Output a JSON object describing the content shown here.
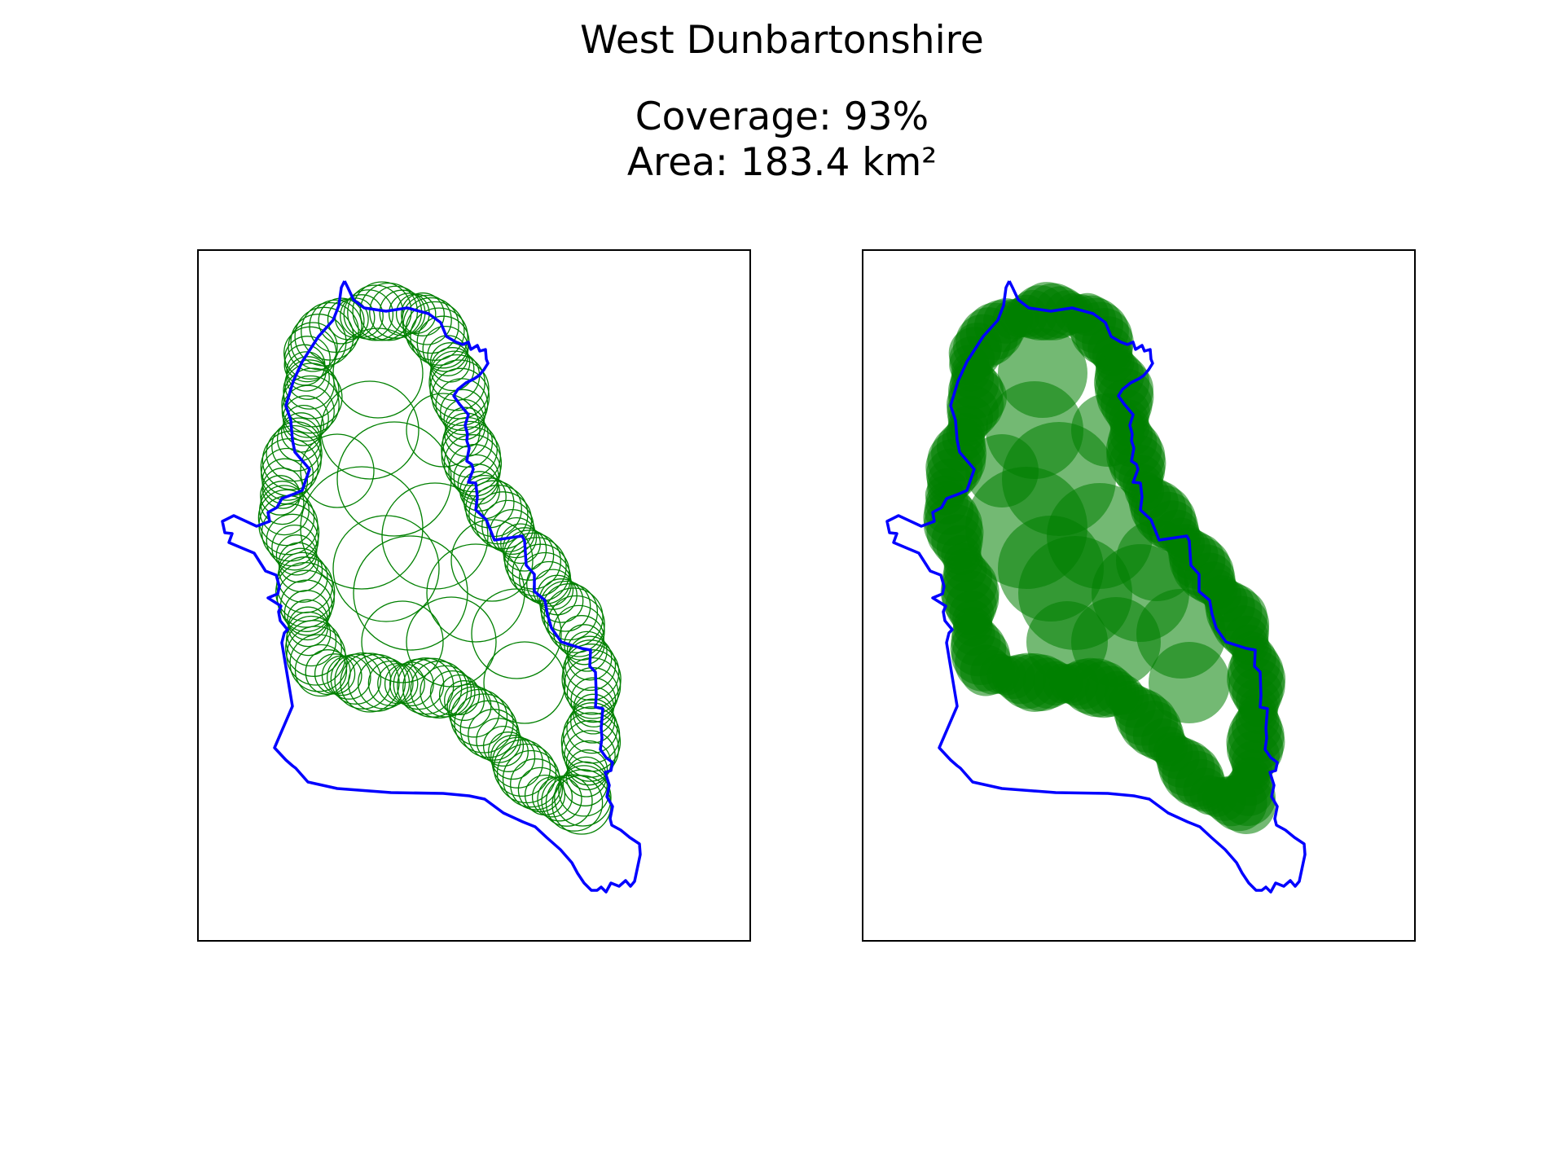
{
  "figure": {
    "title": "West Dunbartonshire",
    "coverage_text": "Coverage: 93%",
    "area_text": "Area: 183.4 km²"
  },
  "map_data": {
    "region": "West Dunbartonshire",
    "coverage_percent": 93,
    "area_km2": 183.4,
    "panels": [
      {
        "style": "circle-outlines"
      },
      {
        "style": "filled-circles"
      }
    ]
  },
  "colors": {
    "boundary": "#0000ff",
    "circle": "#008000",
    "frame": "#000000",
    "background": "#ffffff"
  }
}
